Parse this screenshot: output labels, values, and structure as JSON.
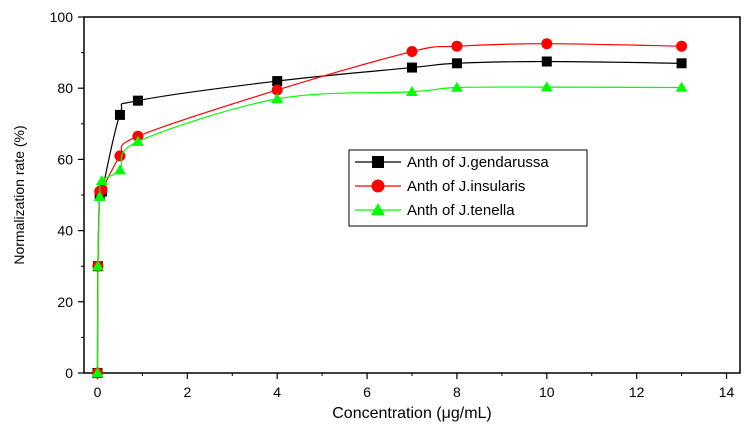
{
  "chart_data": {
    "type": "line",
    "xlabel": "Concentration (μg/mL)",
    "ylabel": "Normalization rate (%)",
    "xlim": [
      -0.3,
      14.3
    ],
    "ylim": [
      0,
      100
    ],
    "x_ticks": [
      0,
      2,
      4,
      6,
      8,
      10,
      12,
      14
    ],
    "y_ticks": [
      0,
      20,
      40,
      60,
      80,
      100
    ],
    "legend_position": "center-right",
    "series": [
      {
        "name": "Anth of J.gendarussa",
        "color": "#000000",
        "marker": "square",
        "x": [
          0,
          0.01,
          0.05,
          0.1,
          0.5,
          0.9,
          4,
          7,
          8,
          10,
          13
        ],
        "y": [
          0,
          30,
          50,
          51,
          72.5,
          76.5,
          82,
          85.8,
          87,
          87.5,
          87
        ]
      },
      {
        "name": "Anth of J.insularis",
        "color": "#ff0000",
        "marker": "circle",
        "x": [
          0,
          0.01,
          0.05,
          0.1,
          0.5,
          0.9,
          4,
          7,
          8,
          10,
          13
        ],
        "y": [
          0,
          30,
          51,
          51.5,
          61,
          66.5,
          79.5,
          90.3,
          91.8,
          92.5,
          91.8
        ]
      },
      {
        "name": "Anth of J.tenella",
        "color": "#00ff00",
        "marker": "triangle",
        "x": [
          0,
          0.01,
          0.05,
          0.1,
          0.5,
          0.9,
          4,
          7,
          8,
          10,
          13
        ],
        "y": [
          0,
          30,
          49.5,
          54,
          57,
          65,
          77,
          79,
          80.2,
          80.3,
          80.2
        ]
      }
    ]
  }
}
